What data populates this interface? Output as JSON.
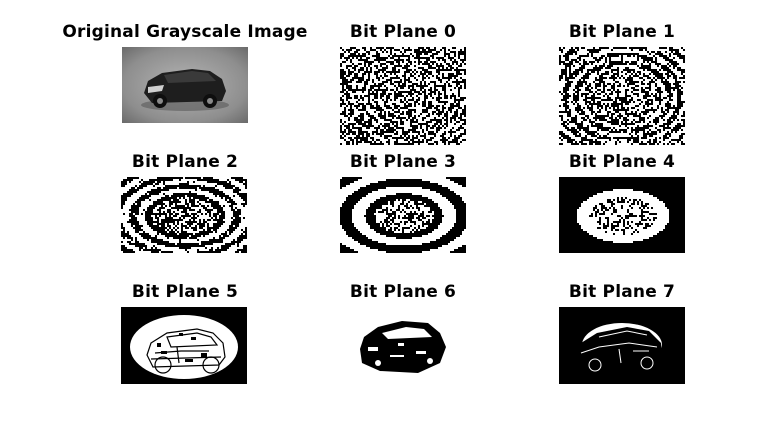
{
  "figure": {
    "panels": [
      {
        "title": "Original Grayscale Image",
        "kind": "grayscale"
      },
      {
        "title": "Bit Plane 0",
        "kind": "noise"
      },
      {
        "title": "Bit Plane 1",
        "kind": "noise-rings"
      },
      {
        "title": "Bit Plane 2",
        "kind": "rings"
      },
      {
        "title": "Bit Plane 3",
        "kind": "rings"
      },
      {
        "title": "Bit Plane 4",
        "kind": "rings-coarse"
      },
      {
        "title": "Bit Plane 5",
        "kind": "ellipse-car"
      },
      {
        "title": "Bit Plane 6",
        "kind": "car-silhouette"
      },
      {
        "title": "Bit Plane 7",
        "kind": "dark-car"
      }
    ]
  },
  "colors": {
    "background": "#ffffff",
    "text": "#000000",
    "black": "#000000",
    "white": "#ffffff",
    "gray": "#777777"
  }
}
